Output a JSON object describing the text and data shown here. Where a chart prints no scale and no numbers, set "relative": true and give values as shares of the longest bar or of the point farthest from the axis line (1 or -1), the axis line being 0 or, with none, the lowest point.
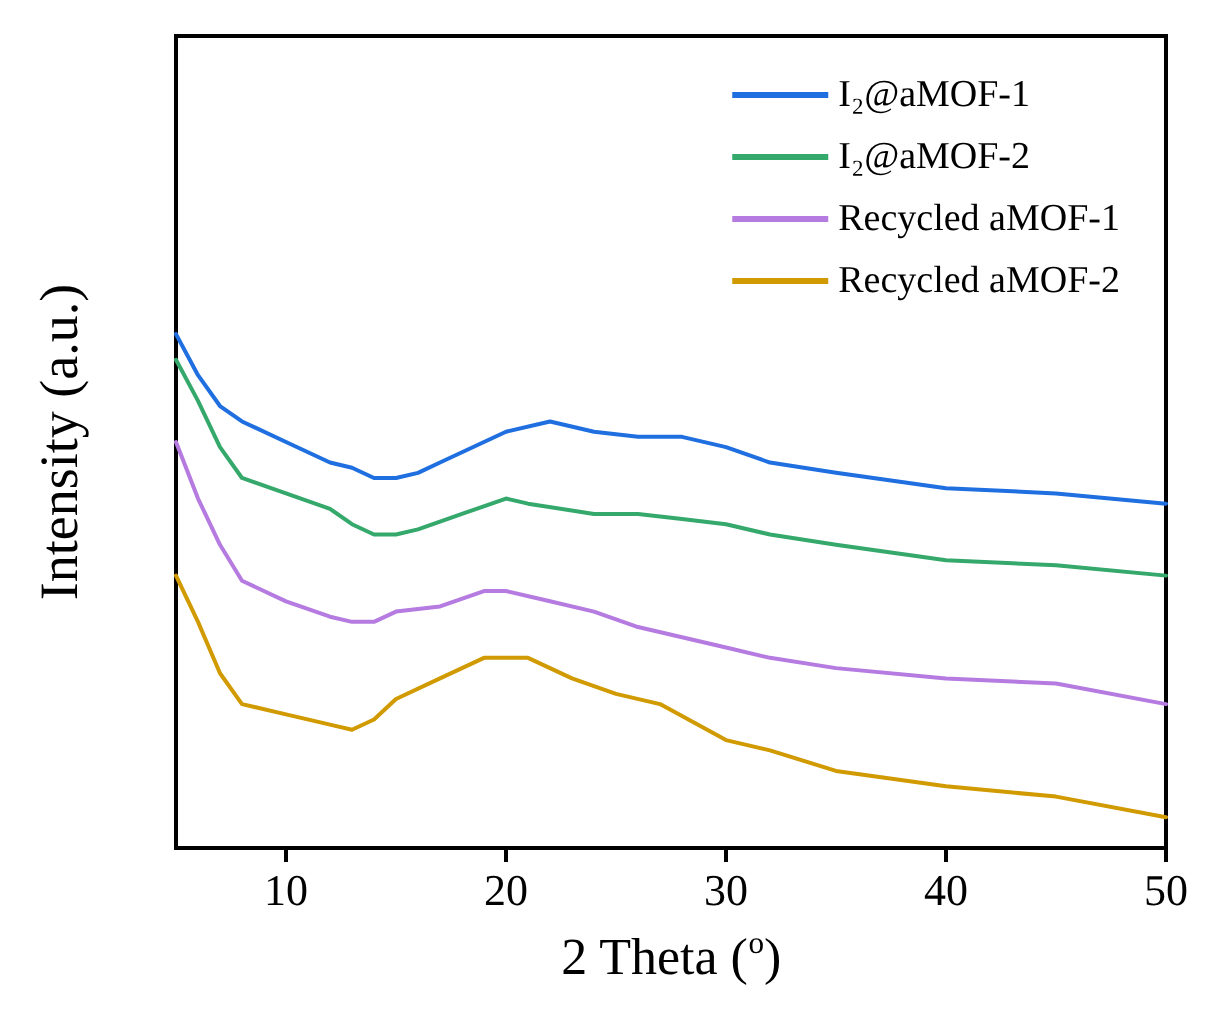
{
  "chart_data": {
    "type": "line",
    "relative": true,
    "xlabel": "2 Theta ($^{o}$)",
    "ylabel": "Intensity (a.u.)",
    "xlim": [
      5,
      50
    ],
    "xticks": [
      10,
      20,
      30,
      40,
      50
    ],
    "grid": false,
    "legend": "top right",
    "marker": "none",
    "line_style": "solid",
    "series": [
      {
        "name": "I₂@aMOF-1",
        "color": "#1f6fe0",
        "x": [
          5,
          6,
          7,
          8,
          10,
          12,
          13,
          14,
          15,
          16,
          17,
          18,
          20,
          22,
          24,
          26,
          28,
          30,
          32,
          35,
          40,
          45,
          50
        ],
        "values": [
          1,
          0.92,
          0.86,
          0.83,
          0.79,
          0.75,
          0.74,
          0.72,
          0.72,
          0.73,
          0.75,
          0.77,
          0.81,
          0.83,
          0.81,
          0.8,
          0.8,
          0.78,
          0.75,
          0.73,
          0.7,
          0.69,
          0.67
        ]
      },
      {
        "name": "I₂@aMOF-2",
        "color": "#35a86b",
        "x": [
          5,
          6,
          7,
          8,
          10,
          12,
          13,
          14,
          15,
          16,
          18,
          20,
          21,
          24,
          26,
          28,
          30,
          32,
          35,
          40,
          45,
          50
        ],
        "values": [
          0.95,
          0.87,
          0.78,
          0.72,
          0.69,
          0.66,
          0.63,
          0.61,
          0.61,
          0.62,
          0.65,
          0.68,
          0.67,
          0.65,
          0.65,
          0.64,
          0.63,
          0.61,
          0.59,
          0.56,
          0.55,
          0.53
        ]
      },
      {
        "name": "Recycled aMOF-1",
        "color": "#b57be0",
        "x": [
          5,
          6,
          7,
          8,
          10,
          12,
          13,
          14,
          15,
          17,
          19,
          20,
          22,
          24,
          26,
          28,
          30,
          32,
          35,
          40,
          45,
          50
        ],
        "values": [
          0.79,
          0.68,
          0.59,
          0.52,
          0.48,
          0.45,
          0.44,
          0.44,
          0.46,
          0.47,
          0.5,
          0.5,
          0.48,
          0.46,
          0.43,
          0.41,
          0.39,
          0.37,
          0.35,
          0.33,
          0.32,
          0.28
        ]
      },
      {
        "name": "Recycled aMOF-2",
        "color": "#d09a00",
        "x": [
          5,
          6,
          7,
          8,
          10,
          12,
          13,
          14,
          15,
          17,
          19,
          20,
          21,
          23,
          25,
          27,
          30,
          32,
          35,
          40,
          45,
          50
        ],
        "values": [
          0.53,
          0.44,
          0.34,
          0.28,
          0.26,
          0.24,
          0.23,
          0.25,
          0.29,
          0.33,
          0.37,
          0.37,
          0.37,
          0.33,
          0.3,
          0.28,
          0.21,
          0.19,
          0.15,
          0.12,
          0.1,
          0.06
        ]
      }
    ]
  }
}
